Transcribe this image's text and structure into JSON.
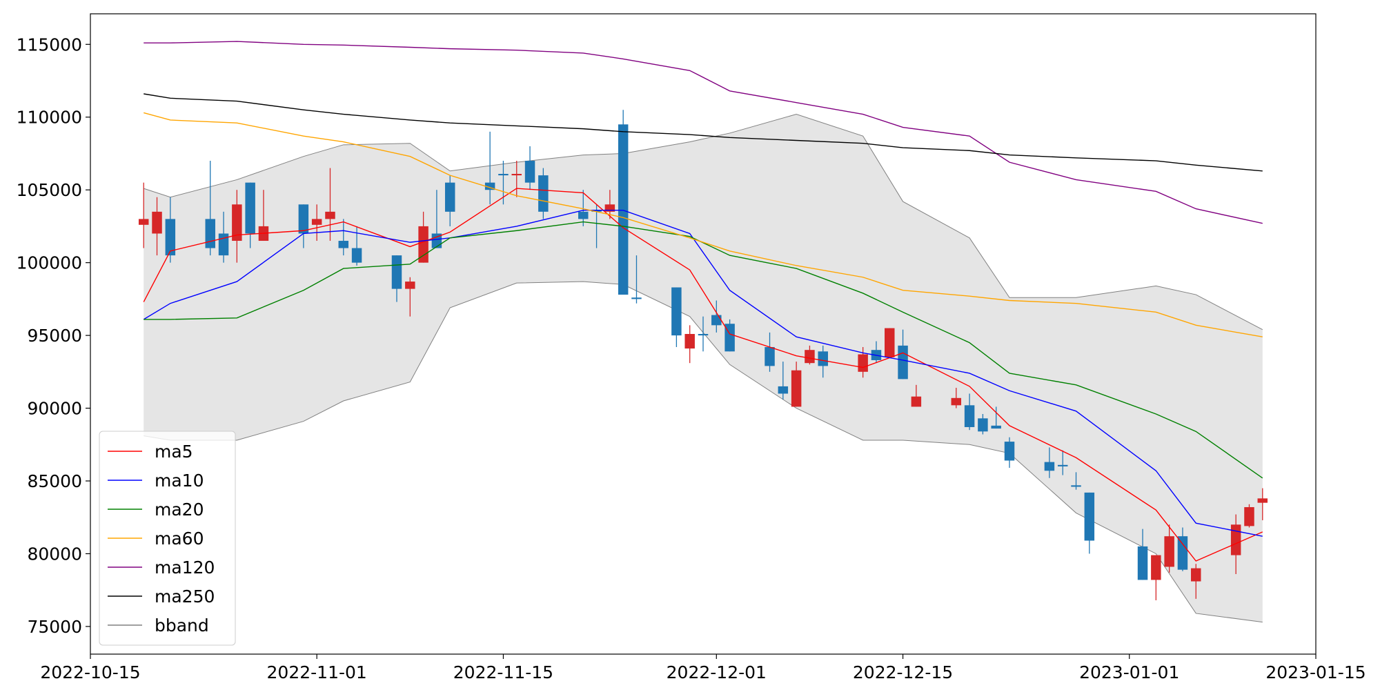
{
  "chart_data": {
    "type": "candlestick",
    "xlim": [
      "2022-10-15",
      "2023-01-15"
    ],
    "xticks": [
      "2022-10-15",
      "2022-11-01",
      "2022-11-15",
      "2022-12-01",
      "2022-12-15",
      "2023-01-01",
      "2023-01-15"
    ],
    "ylim": [
      73100,
      117100
    ],
    "yticks": [
      75000,
      80000,
      85000,
      90000,
      95000,
      100000,
      105000,
      110000,
      115000
    ],
    "legend": "lower left",
    "up_color": "#d62728",
    "down_color": "#1f77b4",
    "candles": {
      "x": [
        "2022-10-19",
        "2022-10-20",
        "2022-10-21",
        "2022-10-24",
        "2022-10-25",
        "2022-10-26",
        "2022-10-27",
        "2022-10-28",
        "2022-10-31",
        "2022-11-01",
        "2022-11-02",
        "2022-11-03",
        "2022-11-04",
        "2022-11-07",
        "2022-11-08",
        "2022-11-09",
        "2022-11-10",
        "2022-11-11",
        "2022-11-14",
        "2022-11-15",
        "2022-11-16",
        "2022-11-17",
        "2022-11-18",
        "2022-11-21",
        "2022-11-22",
        "2022-11-23",
        "2022-11-24",
        "2022-11-25",
        "2022-11-28",
        "2022-11-29",
        "2022-11-30",
        "2022-12-01",
        "2022-12-02",
        "2022-12-05",
        "2022-12-06",
        "2022-12-07",
        "2022-12-08",
        "2022-12-09",
        "2022-12-12",
        "2022-12-13",
        "2022-12-14",
        "2022-12-15",
        "2022-12-16",
        "2022-12-19",
        "2022-12-20",
        "2022-12-21",
        "2022-12-22",
        "2022-12-23",
        "2022-12-26",
        "2022-12-27",
        "2022-12-28",
        "2022-12-29",
        "2023-01-02",
        "2023-01-03",
        "2023-01-04",
        "2023-01-05",
        "2023-01-06",
        "2023-01-09",
        "2023-01-10",
        "2023-01-11"
      ],
      "open": [
        102600,
        102000,
        103000,
        103000,
        102000,
        101500,
        105500,
        101500,
        104000,
        102600,
        103000,
        101500,
        101000,
        100500,
        98200,
        100000,
        102000,
        105500,
        105500,
        106100,
        106000,
        107000,
        106000,
        103500,
        103600,
        103500,
        109500,
        97600,
        98300,
        94100,
        95100,
        96400,
        95800,
        94200,
        91500,
        90100,
        93100,
        93900,
        92500,
        94000,
        93500,
        94300,
        90100,
        90200,
        90200,
        89300,
        88800,
        87700,
        86300,
        86100,
        84700,
        84200,
        80500,
        78200,
        79100,
        81200,
        78100,
        79900,
        81900,
        83500
      ],
      "close": [
        103000,
        103500,
        100500,
        101000,
        100500,
        104000,
        102000,
        102500,
        102000,
        103000,
        103500,
        101000,
        100000,
        98200,
        98700,
        102500,
        101000,
        103500,
        105000,
        106000,
        106100,
        105500,
        103500,
        103000,
        103500,
        104000,
        97800,
        97500,
        95000,
        95100,
        95000,
        95700,
        93900,
        92900,
        91000,
        92600,
        94000,
        92900,
        93700,
        93300,
        95500,
        92000,
        90800,
        90700,
        88700,
        88400,
        88600,
        86400,
        85700,
        86000,
        84600,
        80900,
        78200,
        79900,
        81200,
        78900,
        79000,
        82000,
        83200,
        83800
      ],
      "high": [
        105500,
        104500,
        104500,
        107000,
        103500,
        105000,
        105500,
        105000,
        104000,
        104000,
        106500,
        103000,
        102500,
        100500,
        99000,
        103500,
        105000,
        106000,
        109000,
        107000,
        107000,
        108000,
        106500,
        105000,
        104000,
        105000,
        110500,
        100500,
        98300,
        95700,
        96300,
        97400,
        96100,
        95200,
        93200,
        93200,
        94300,
        94300,
        94200,
        94600,
        95500,
        95400,
        91600,
        91400,
        91000,
        89600,
        90100,
        88000,
        87300,
        87100,
        85600,
        84200,
        81700,
        79900,
        82000,
        81800,
        79300,
        82700,
        83400,
        84500
      ],
      "low": [
        101000,
        100500,
        100000,
        100500,
        100000,
        100000,
        101000,
        101500,
        101000,
        101500,
        101500,
        100500,
        99800,
        97300,
        96300,
        100000,
        101000,
        102500,
        104000,
        104000,
        104500,
        105000,
        103000,
        102500,
        101000,
        103000,
        97800,
        97200,
        94200,
        93100,
        93900,
        95200,
        93900,
        92500,
        90600,
        90100,
        93000,
        92100,
        92100,
        93100,
        93500,
        92000,
        90100,
        90000,
        88500,
        88200,
        88600,
        85900,
        85200,
        85400,
        84400,
        80000,
        78200,
        76800,
        78700,
        78800,
        76900,
        78600,
        81800,
        82300
      ]
    },
    "line_x": [
      "2022-10-19",
      "2022-10-21",
      "2022-10-26",
      "2022-10-31",
      "2022-11-03",
      "2022-11-08",
      "2022-11-11",
      "2022-11-16",
      "2022-11-21",
      "2022-11-24",
      "2022-11-29",
      "2022-12-02",
      "2022-12-07",
      "2022-12-12",
      "2022-12-15",
      "2022-12-20",
      "2022-12-23",
      "2022-12-28",
      "2023-01-03",
      "2023-01-06",
      "2023-01-11"
    ],
    "series": [
      {
        "name": "ma5",
        "color": "#ff0000",
        "values": [
          97300,
          100800,
          101900,
          102200,
          102800,
          101100,
          102100,
          105100,
          104800,
          102400,
          99500,
          95100,
          93600,
          92800,
          93800,
          91500,
          88800,
          86600,
          83000,
          79500,
          81500
        ]
      },
      {
        "name": "ma10",
        "color": "#0000ff",
        "values": [
          96100,
          97200,
          98700,
          102000,
          102200,
          101400,
          101700,
          102500,
          103600,
          103600,
          102000,
          98100,
          94900,
          93800,
          93300,
          92400,
          91200,
          89800,
          85700,
          82100,
          81200
        ]
      },
      {
        "name": "ma20",
        "color": "#008000",
        "values": [
          96100,
          96100,
          96200,
          98100,
          99600,
          99900,
          101700,
          102200,
          102800,
          102500,
          101800,
          100500,
          99600,
          97900,
          96600,
          94500,
          92400,
          91600,
          89600,
          88400,
          85200
        ]
      },
      {
        "name": "ma60",
        "color": "#ffa500",
        "values": [
          110300,
          109800,
          109600,
          108700,
          108300,
          107300,
          106000,
          104600,
          103700,
          103100,
          101700,
          100800,
          99800,
          99000,
          98100,
          97700,
          97400,
          97200,
          96600,
          95700,
          94900
        ]
      },
      {
        "name": "ma120",
        "color": "#800080",
        "values": [
          115100,
          115100,
          115200,
          115000,
          114950,
          114800,
          114700,
          114600,
          114400,
          114000,
          113200,
          111800,
          111000,
          110200,
          109300,
          108700,
          106900,
          105700,
          104900,
          103700,
          102700
        ]
      },
      {
        "name": "ma250",
        "color": "#000000",
        "values": [
          111600,
          111300,
          111100,
          110500,
          110200,
          109800,
          109600,
          109400,
          109200,
          109000,
          108800,
          108600,
          108400,
          108200,
          107900,
          107700,
          107400,
          107200,
          107000,
          106700,
          106300
        ]
      }
    ],
    "bband": {
      "name": "bband",
      "color": "#808080",
      "fill": "#e5e5e5",
      "upper": [
        105100,
        104500,
        105700,
        107300,
        108100,
        108200,
        106300,
        106900,
        107400,
        107500,
        108300,
        108900,
        110200,
        108700,
        104200,
        101700,
        97600,
        97600,
        98400,
        97800,
        95400
      ],
      "lower": [
        88100,
        87800,
        87800,
        89100,
        90500,
        91800,
        96900,
        98600,
        98700,
        98500,
        96300,
        93000,
        90000,
        87800,
        87800,
        87500,
        86900,
        82800,
        80000,
        75900,
        75300
      ]
    }
  }
}
